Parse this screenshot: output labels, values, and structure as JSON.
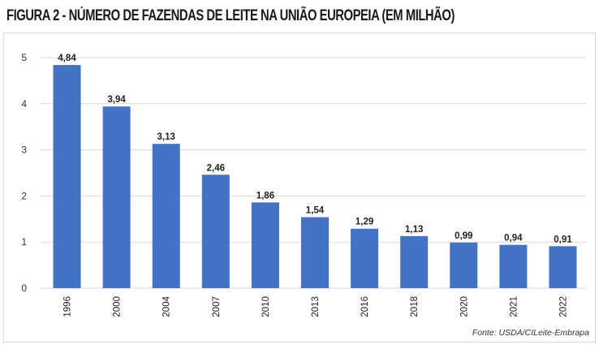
{
  "title": "FIGURA 2 - NÚMERO DE FAZENDAS DE LEITE NA UNIÃO EUROPEIA (EM MILHÃO)",
  "source": "Fonte: USDA/CILeite-Embrapa",
  "colors": {
    "bar": "#4472c4",
    "grid": "#d9d9d9"
  },
  "chart_data": {
    "type": "bar",
    "title": "FIGURA 2 - NÚMERO DE FAZENDAS DE LEITE NA UNIÃO EUROPEIA (EM MILHÃO)",
    "categories": [
      "1996",
      "2000",
      "2004",
      "2007",
      "2010",
      "2013",
      "2016",
      "2018",
      "2020",
      "2021",
      "2022"
    ],
    "values": [
      4.84,
      3.94,
      3.13,
      2.46,
      1.86,
      1.54,
      1.29,
      1.13,
      0.99,
      0.94,
      0.91
    ],
    "data_labels": [
      "4,84",
      "3,94",
      "3,13",
      "2,46",
      "1,86",
      "1,54",
      "1,29",
      "1,13",
      "0,99",
      "0,94",
      "0,91"
    ],
    "yticks": [
      0,
      1,
      2,
      3,
      4,
      5
    ],
    "ylim": [
      0,
      5
    ],
    "grid": true,
    "legend": "none",
    "xlabel": "",
    "ylabel": ""
  }
}
